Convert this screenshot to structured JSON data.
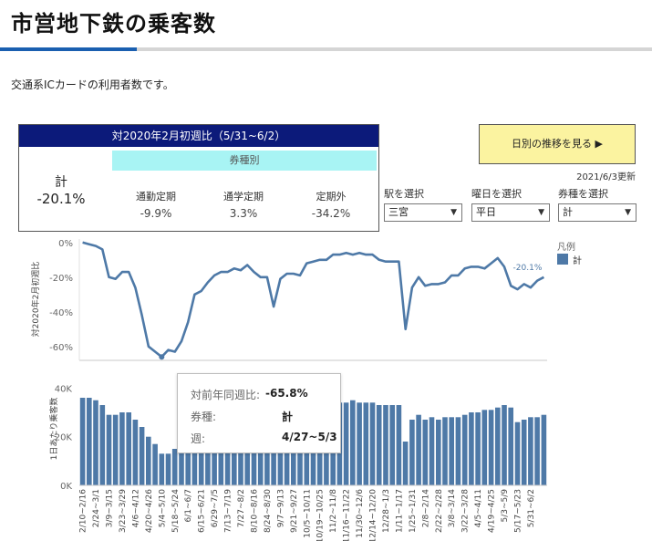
{
  "title": "市営地下鉄の乗客数",
  "intro": "交通系ICカードの利用者数です。",
  "kpi": {
    "header": "対2020年2月初週比（5/31~6/2）",
    "total_label": "計",
    "total_value": "-20.1%",
    "ticket_type_label": "券種別",
    "columns": [
      {
        "label": "通勤定期",
        "value": "-9.9%"
      },
      {
        "label": "通学定期",
        "value": "3.3%"
      },
      {
        "label": "定期外",
        "value": "-34.2%"
      }
    ]
  },
  "daily_button": "日別の推移を見る ▶",
  "updated": "2021/6/3更新",
  "filters": [
    {
      "label": "駅を選択",
      "value": "三宮"
    },
    {
      "label": "曜日を選択",
      "value": "平日"
    },
    {
      "label": "券種を選択",
      "value": "計"
    }
  ],
  "legend": {
    "title": "凡例",
    "item": "計",
    "color": "#4e79a7"
  },
  "line_ylabel": "対2020年2月初週比",
  "bar_ylabel": "1日あたり乗客数",
  "tooltip": {
    "rows": [
      {
        "key": "対前年同週比:",
        "value": "-65.8%"
      },
      {
        "key": "券種:",
        "value": "計"
      },
      {
        "key": "週:",
        "value": "4/27~5/3"
      }
    ]
  },
  "chart_data": [
    {
      "type": "line",
      "ylabel": "対2020年2月初週比",
      "yticks": [
        "0%",
        "-20%",
        "-40%",
        "-60%"
      ],
      "ylim": [
        -68,
        2
      ],
      "color": "#4e79a7",
      "end_label": "-20.1%",
      "values": [
        0,
        -1,
        -2,
        -4,
        -20,
        -21,
        -17,
        -17,
        -26,
        -42,
        -60,
        -63,
        -66,
        -62,
        -63,
        -57,
        -46,
        -30,
        -28,
        -23,
        -19,
        -17,
        -17,
        -15,
        -16,
        -13,
        -17,
        -20,
        -20,
        -37,
        -21,
        -18,
        -18,
        -19,
        -12,
        -11,
        -10,
        -10,
        -7,
        -7,
        -6,
        -7,
        -6,
        -7,
        -7,
        -10,
        -11,
        -11,
        -11,
        -50,
        -26,
        -20,
        -25,
        -24,
        -24,
        -23,
        -19,
        -19,
        -15,
        -14,
        -14,
        -15,
        -12,
        -9,
        -14,
        -25,
        -27,
        -24,
        -26,
        -22,
        -20
      ]
    },
    {
      "type": "bar",
      "ylabel": "1日あたり乗客数",
      "yticks": [
        "40K",
        "20K",
        "0K"
      ],
      "ylim": [
        0,
        45000
      ],
      "color": "#4e79a7",
      "values": [
        36000,
        36000,
        35000,
        33000,
        29000,
        29000,
        30000,
        30000,
        27000,
        24000,
        20000,
        17000,
        13000,
        13000,
        15000,
        16000,
        18000,
        22000,
        25000,
        28000,
        30000,
        31000,
        32000,
        33000,
        33000,
        33000,
        33000,
        33000,
        33000,
        33000,
        33000,
        33000,
        33000,
        33000,
        33000,
        33000,
        33000,
        33000,
        34000,
        34000,
        34000,
        35000,
        34000,
        34000,
        34000,
        33000,
        33000,
        33000,
        33000,
        18000,
        27000,
        29000,
        27000,
        28000,
        27000,
        28000,
        28000,
        28000,
        29000,
        30000,
        30000,
        31000,
        31000,
        32000,
        33000,
        32000,
        26000,
        27000,
        28000,
        28000,
        29000
      ],
      "week_labels": [
        "2/10~2/16",
        "2/24~3/1",
        "3/9~3/15",
        "3/23~3/29",
        "4/6~4/12",
        "4/20~4/26",
        "5/4~5/10",
        "5/18~5/24",
        "6/1~6/7",
        "6/15~6/21",
        "6/29~7/5",
        "7/13~7/19",
        "7/27~8/2",
        "8/10~8/16",
        "8/24~8/30",
        "9/7~9/13",
        "9/21~9/27",
        "10/5~10/11",
        "10/19~10/25",
        "11/2~11/8",
        "11/16~11/22",
        "11/30~12/6",
        "12/14~12/20",
        "12/28~1/3",
        "1/11~1/17",
        "1/25~1/31",
        "2/8~2/14",
        "2/22~2/28",
        "3/8~3/14",
        "3/22~3/28",
        "4/5~4/11",
        "4/19~4/25",
        "5/3~5/9",
        "5/17~5/23",
        "5/31~6/2"
      ]
    }
  ]
}
